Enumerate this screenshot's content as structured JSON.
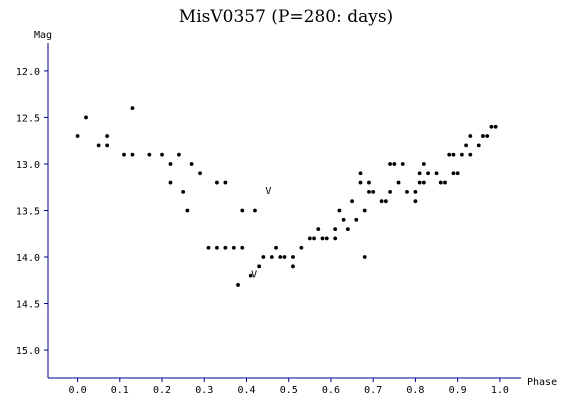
{
  "chart_data": {
    "type": "scatter",
    "title": "MisV0357 (P=280: days)",
    "xlabel": "Phase",
    "ylabel": "Mag",
    "xlim": [
      -0.07,
      1.05
    ],
    "ylim": [
      15.3,
      11.7
    ],
    "y_inverted": true,
    "grid": false,
    "x_ticks": [
      "0.0",
      "0.1",
      "0.2",
      "0.3",
      "0.4",
      "0.5",
      "0.6",
      "0.7",
      "0.8",
      "0.9",
      "1.0"
    ],
    "y_ticks": [
      "12.0",
      "12.5",
      "13.0",
      "13.5",
      "14.0",
      "14.5",
      "15.0"
    ],
    "series": [
      {
        "marker": "dot",
        "color": "#000000",
        "x": [
          0.0,
          0.02,
          0.05,
          0.07,
          0.07,
          0.11,
          0.13,
          0.13,
          0.17,
          0.2,
          0.22,
          0.22,
          0.24,
          0.25,
          0.26,
          0.27,
          0.29,
          0.31,
          0.33,
          0.33,
          0.35,
          0.35,
          0.37,
          0.38,
          0.39,
          0.39,
          0.41,
          0.42,
          0.43,
          0.44,
          0.46,
          0.47,
          0.48,
          0.49,
          0.51,
          0.51,
          0.53,
          0.55,
          0.56,
          0.57,
          0.58,
          0.59,
          0.61,
          0.61,
          0.62,
          0.63,
          0.64,
          0.65,
          0.66,
          0.67,
          0.67,
          0.68,
          0.68,
          0.69,
          0.69,
          0.7,
          0.72,
          0.73,
          0.74,
          0.74,
          0.75,
          0.76,
          0.77,
          0.78,
          0.8,
          0.8,
          0.81,
          0.81,
          0.82,
          0.82,
          0.83,
          0.85,
          0.86,
          0.87,
          0.88,
          0.89,
          0.89,
          0.9,
          0.91,
          0.92,
          0.93,
          0.93,
          0.95,
          0.96,
          0.97,
          0.98,
          0.99
        ],
        "y": [
          12.7,
          12.5,
          12.8,
          12.7,
          12.8,
          12.9,
          12.4,
          12.9,
          12.9,
          12.9,
          13.0,
          13.2,
          12.9,
          13.3,
          13.5,
          13.0,
          13.1,
          13.9,
          13.2,
          13.9,
          13.2,
          13.9,
          13.9,
          14.3,
          13.5,
          13.9,
          14.2,
          13.5,
          14.1,
          14.0,
          14.0,
          13.9,
          14.0,
          14.0,
          14.0,
          14.1,
          13.9,
          13.8,
          13.8,
          13.7,
          13.8,
          13.8,
          13.7,
          13.8,
          13.5,
          13.6,
          13.7,
          13.4,
          13.6,
          13.1,
          13.2,
          13.5,
          14.0,
          13.2,
          13.3,
          13.3,
          13.4,
          13.4,
          13.0,
          13.3,
          13.0,
          13.2,
          13.0,
          13.3,
          13.3,
          13.4,
          13.1,
          13.2,
          13.0,
          13.2,
          13.1,
          13.1,
          13.2,
          13.2,
          12.9,
          13.1,
          12.9,
          13.1,
          12.9,
          12.8,
          12.7,
          12.9,
          12.8,
          12.7,
          12.7,
          12.6,
          12.6
        ]
      }
    ],
    "annotations": [
      {
        "text": "V",
        "x": 0.452,
        "y": 13.32
      },
      {
        "text": "V",
        "x": 0.418,
        "y": 14.22
      }
    ]
  }
}
